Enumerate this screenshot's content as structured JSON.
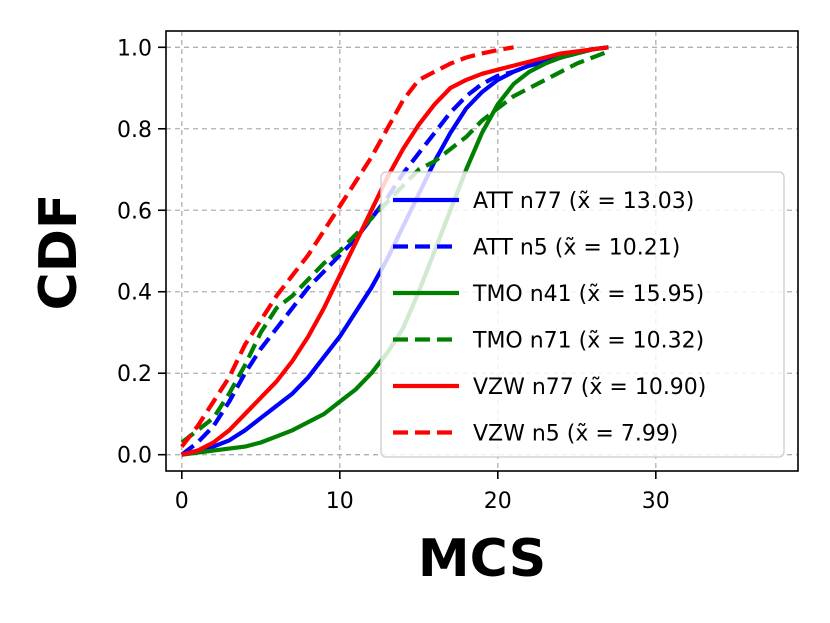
{
  "chart_data": {
    "type": "line",
    "title": "",
    "xlabel": "MCS",
    "ylabel": "CDF",
    "xlim": [
      -1,
      39
    ],
    "ylim": [
      -0.04,
      1.04
    ],
    "xticks": [
      0,
      10,
      20,
      30
    ],
    "yticks": [
      0.0,
      0.2,
      0.4,
      0.6,
      0.8,
      1.0
    ],
    "xtick_labels": [
      "0",
      "10",
      "20",
      "30"
    ],
    "ytick_labels": [
      "0.0",
      "0.2",
      "0.4",
      "0.6",
      "0.8",
      "1.0"
    ],
    "grid": true,
    "legend_position": "center-right",
    "series": [
      {
        "name": "ATT n77",
        "legend_label": "ATT n77 (x̃ = 13.03)",
        "color": "#0000ff",
        "dash": "solid",
        "x": [
          0,
          1,
          2,
          3,
          4,
          5,
          6,
          7,
          8,
          9,
          10,
          11,
          12,
          13,
          14,
          15,
          16,
          17,
          18,
          19,
          20,
          21,
          22,
          23,
          24,
          25,
          26,
          27
        ],
        "y": [
          0.0,
          0.01,
          0.02,
          0.035,
          0.06,
          0.09,
          0.12,
          0.15,
          0.19,
          0.24,
          0.29,
          0.35,
          0.41,
          0.48,
          0.56,
          0.64,
          0.72,
          0.79,
          0.85,
          0.89,
          0.92,
          0.94,
          0.955,
          0.965,
          0.975,
          0.985,
          0.995,
          1.0
        ]
      },
      {
        "name": "ATT n5",
        "legend_label": "ATT n5 (x̃ = 10.21)",
        "color": "#0000ff",
        "dash": "dashed",
        "x": [
          0,
          1,
          2,
          3,
          4,
          5,
          6,
          7,
          8,
          9,
          10,
          11,
          12,
          13,
          14,
          15,
          16,
          17,
          18,
          19,
          20,
          21,
          22,
          23,
          24,
          25,
          26,
          27
        ],
        "y": [
          0.0,
          0.03,
          0.07,
          0.13,
          0.2,
          0.26,
          0.31,
          0.36,
          0.41,
          0.45,
          0.49,
          0.53,
          0.58,
          0.63,
          0.69,
          0.74,
          0.79,
          0.84,
          0.88,
          0.91,
          0.93,
          0.94,
          0.955,
          0.965,
          0.975,
          0.985,
          0.995,
          1.0
        ]
      },
      {
        "name": "TMO n41",
        "legend_label": "TMO n41 (x̃ = 15.95)",
        "color": "#008000",
        "dash": "solid",
        "x": [
          0,
          1,
          2,
          3,
          4,
          5,
          6,
          7,
          8,
          9,
          10,
          11,
          12,
          13,
          14,
          15,
          16,
          17,
          18,
          19,
          20,
          21,
          22,
          23,
          24,
          25,
          26,
          27
        ],
        "y": [
          0.0,
          0.005,
          0.01,
          0.015,
          0.02,
          0.03,
          0.045,
          0.06,
          0.08,
          0.1,
          0.13,
          0.16,
          0.2,
          0.25,
          0.31,
          0.4,
          0.5,
          0.6,
          0.7,
          0.79,
          0.86,
          0.91,
          0.94,
          0.96,
          0.975,
          0.985,
          0.995,
          1.0
        ]
      },
      {
        "name": "TMO n71",
        "legend_label": "TMO n71 (x̃ = 10.32)",
        "color": "#008000",
        "dash": "dashed",
        "x": [
          0,
          1,
          2,
          3,
          4,
          5,
          6,
          7,
          8,
          9,
          10,
          11,
          12,
          13,
          14,
          15,
          16,
          17,
          18,
          19,
          20,
          21,
          22,
          23,
          24,
          25,
          26,
          27
        ],
        "y": [
          0.03,
          0.06,
          0.09,
          0.15,
          0.22,
          0.3,
          0.36,
          0.39,
          0.43,
          0.47,
          0.5,
          0.54,
          0.58,
          0.62,
          0.66,
          0.7,
          0.72,
          0.75,
          0.78,
          0.82,
          0.85,
          0.88,
          0.9,
          0.92,
          0.94,
          0.96,
          0.975,
          0.99
        ]
      },
      {
        "name": "VZW n77",
        "legend_label": "VZW n77 (x̃ = 10.90)",
        "color": "#ff0000",
        "dash": "solid",
        "x": [
          0,
          1,
          2,
          3,
          4,
          5,
          6,
          7,
          8,
          9,
          10,
          11,
          12,
          13,
          14,
          15,
          16,
          17,
          18,
          19,
          20,
          21,
          22,
          23,
          24,
          25,
          26,
          27
        ],
        "y": [
          0.0,
          0.01,
          0.03,
          0.06,
          0.1,
          0.14,
          0.18,
          0.23,
          0.29,
          0.36,
          0.44,
          0.52,
          0.6,
          0.68,
          0.75,
          0.81,
          0.86,
          0.9,
          0.92,
          0.935,
          0.945,
          0.955,
          0.965,
          0.975,
          0.985,
          0.99,
          0.995,
          1.0
        ]
      },
      {
        "name": "VZW n5",
        "legend_label": "VZW n5 (x̃ = 7.99)",
        "color": "#ff0000",
        "dash": "dashed",
        "x": [
          0,
          1,
          2,
          3,
          4,
          5,
          6,
          7,
          8,
          9,
          10,
          11,
          12,
          13,
          14,
          15,
          16,
          17,
          18,
          19,
          20,
          21
        ],
        "y": [
          0.02,
          0.07,
          0.13,
          0.19,
          0.27,
          0.33,
          0.39,
          0.44,
          0.49,
          0.55,
          0.61,
          0.67,
          0.73,
          0.8,
          0.87,
          0.92,
          0.94,
          0.96,
          0.975,
          0.985,
          0.993,
          1.0
        ]
      }
    ]
  }
}
